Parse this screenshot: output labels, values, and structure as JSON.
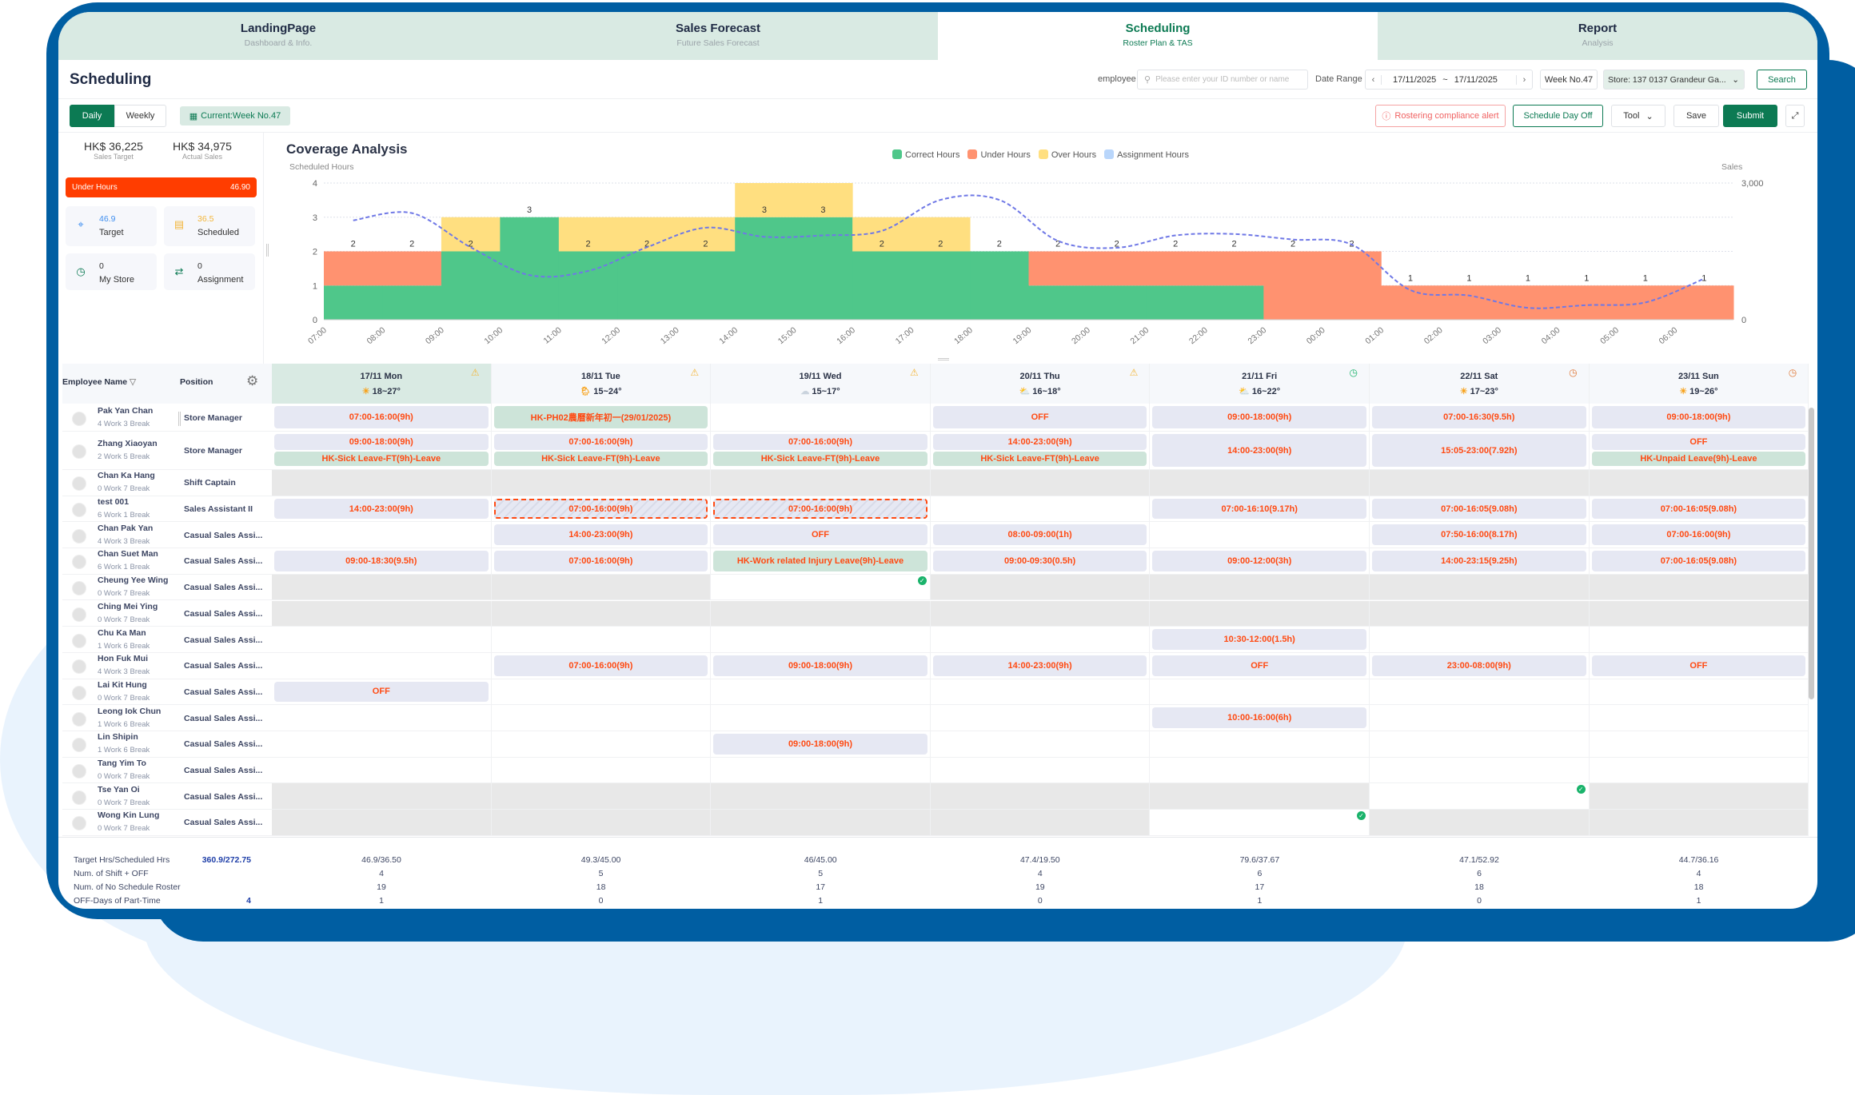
{
  "colors": {
    "brand": "#005ea2",
    "accent": "#0c7a53",
    "correct": "#4fc78a",
    "under": "#ff9270",
    "over": "#ffdf80",
    "assignment": "#b9d6fb",
    "sales_line": "#6f78e6",
    "shift_text": "#ff4a12",
    "under_hours_bar": "#ff3d00"
  },
  "tabs": [
    {
      "label": "LandingPage",
      "sub": "Dashboard & Info."
    },
    {
      "label": "Sales Forecast",
      "sub": "Future Sales Forecast"
    },
    {
      "label": "Scheduling",
      "sub": "Roster Plan & TAS",
      "active": true
    },
    {
      "label": "Report",
      "sub": "Analysis"
    }
  ],
  "page_title": "Scheduling",
  "filters": {
    "employee_label": "employee",
    "employee_placeholder": "Please enter your ID number or name",
    "date_range_label": "Date Range",
    "date_from": "17/11/2025",
    "date_sep": "~",
    "date_to": "17/11/2025",
    "week": "Week No.47",
    "store": "Store:  137 0137 Grandeur Ga...",
    "search": "Search"
  },
  "toolbar": {
    "daily": "Daily",
    "weekly": "Weekly",
    "current_week": "Current:Week No.47",
    "alert": "Rostering compliance alert",
    "schedule_day_off": "Schedule Day Off",
    "tool": "Tool",
    "save": "Save",
    "submit": "Submit"
  },
  "stats": {
    "sales_target": "HK$ 36,225",
    "sales_target_label": "Sales Target",
    "actual_sales": "HK$ 34,975",
    "actual_sales_label": "Actual Sales",
    "under_hours_label": "Under Hours",
    "under_hours": "46.90",
    "tiles": [
      {
        "value": "46.9",
        "label": "Target",
        "icon": "crosshair-icon"
      },
      {
        "value": "36.5",
        "label": "Scheduled",
        "icon": "calendar-note-icon"
      },
      {
        "value": "0",
        "label": "My Store",
        "icon": "clock-icon"
      },
      {
        "value": "0",
        "label": "Assignment",
        "icon": "shuffle-icon"
      }
    ]
  },
  "chart_data": {
    "type": "bar",
    "title": "Coverage Analysis",
    "ylabel": "Scheduled Hours",
    "y2label": "Sales",
    "ylim": [
      0,
      4
    ],
    "y2lim": [
      0,
      3000
    ],
    "yticks": [
      "0",
      "1",
      "2",
      "3",
      "4"
    ],
    "y2ticks": [
      "0",
      "3,000"
    ],
    "legend": [
      "Correct Hours",
      "Under Hours",
      "Over Hours",
      "Assignment Hours"
    ],
    "legend_position": "top",
    "categories": [
      "07:00",
      "08:00",
      "09:00",
      "10:00",
      "11:00",
      "12:00",
      "13:00",
      "14:00",
      "15:00",
      "16:00",
      "17:00",
      "18:00",
      "19:00",
      "20:00",
      "21:00",
      "22:00",
      "23:00",
      "00:00",
      "01:00",
      "02:00",
      "03:00",
      "04:00",
      "05:00",
      "06:00"
    ],
    "series": [
      {
        "name": "Correct Hours",
        "values": [
          1,
          1,
          2,
          3,
          2,
          2,
          2,
          3,
          3,
          2,
          2,
          2,
          1,
          1,
          1,
          1,
          0,
          0,
          0,
          0,
          0,
          0,
          0,
          0
        ]
      },
      {
        "name": "Under Hours",
        "values": [
          1,
          1,
          0,
          0,
          0,
          0,
          0,
          0,
          0,
          0,
          0,
          0,
          1,
          1,
          1,
          1,
          2,
          2,
          1,
          1,
          1,
          1,
          1,
          1
        ]
      },
      {
        "name": "Over Hours",
        "values": [
          0,
          0,
          1,
          0,
          1,
          1,
          1,
          1,
          1,
          1,
          1,
          0,
          0,
          0,
          0,
          0,
          0,
          0,
          0,
          0,
          0,
          0,
          0,
          0
        ]
      },
      {
        "name": "Assignment Hours",
        "values": [
          0,
          0,
          0,
          0,
          0,
          0,
          0,
          0,
          0,
          0,
          0,
          0,
          0,
          0,
          0,
          0,
          0,
          0,
          0,
          0,
          0,
          0,
          0,
          0
        ]
      }
    ],
    "bar_labels": [
      "2",
      "2",
      "2",
      "3",
      "2",
      "2",
      "2",
      "3",
      "3",
      "2",
      "2",
      "2",
      "2",
      "2",
      "2",
      "2",
      "2",
      "2",
      "1",
      "1",
      "1",
      "1",
      "1",
      "1"
    ],
    "sales": [
      2180,
      2340,
      1590,
      980,
      1070,
      1590,
      2020,
      1820,
      1850,
      1950,
      2630,
      2630,
      1730,
      1580,
      1850,
      1880,
      1760,
      1650,
      650,
      530,
      260,
      320,
      380,
      900
    ],
    "grid": true
  },
  "table": {
    "col_name": "Employee Name",
    "col_position": "Position",
    "days": [
      {
        "date": "17/11 Mon",
        "weather": "sunny",
        "temp": "18~27°",
        "alert": "warning",
        "selected": true
      },
      {
        "date": "18/11 Tue",
        "weather": "sun-rain",
        "temp": "15~24°",
        "alert": "warning"
      },
      {
        "date": "19/11 Wed",
        "weather": "cloudy",
        "temp": "15~17°",
        "alert": "warning"
      },
      {
        "date": "20/11 Thu",
        "weather": "partly-cloudy",
        "temp": "16~18°",
        "alert": "warning"
      },
      {
        "date": "21/11 Fri",
        "weather": "partly-cloudy",
        "temp": "16~22°",
        "alert": "clock-green"
      },
      {
        "date": "22/11 Sat",
        "weather": "sunny",
        "temp": "17~23°",
        "alert": "clock-orange"
      },
      {
        "date": "23/11 Sun",
        "weather": "sunny",
        "temp": "19~26°",
        "alert": "clock-orange"
      }
    ],
    "rows": [
      {
        "name": "Pak Yan Chan",
        "wb": "4 Work  3 Break",
        "position": "Store Manager",
        "cells": [
          {
            "s": [
              "07:00-16:00(9h)"
            ]
          },
          {
            "l": [
              "HK-PH02農曆新年初一(29/01/2025)"
            ]
          },
          {},
          {
            "s": [
              "OFF"
            ]
          },
          {
            "s": [
              "09:00-18:00(9h)"
            ]
          },
          {
            "s": [
              "07:00-16:30(9.5h)"
            ]
          },
          {
            "s": [
              "09:00-18:00(9h)"
            ]
          }
        ]
      },
      {
        "name": "Zhang Xiaoyan",
        "wb": "2 Work  5 Break",
        "position": "Store Manager",
        "cells": [
          {
            "s": [
              "09:00-18:00(9h)"
            ],
            "l": [
              "HK-Sick Leave-FT(9h)-Leave"
            ]
          },
          {
            "s": [
              "07:00-16:00(9h)"
            ],
            "l": [
              "HK-Sick Leave-FT(9h)-Leave"
            ]
          },
          {
            "s": [
              "07:00-16:00(9h)"
            ],
            "l": [
              "HK-Sick Leave-FT(9h)-Leave"
            ]
          },
          {
            "s": [
              "14:00-23:00(9h)"
            ],
            "l": [
              "HK-Sick Leave-FT(9h)-Leave"
            ]
          },
          {
            "s": [
              "14:00-23:00(9h)"
            ]
          },
          {
            "s": [
              "15:05-23:00(7.92h)"
            ]
          },
          {
            "s": [
              "OFF"
            ],
            "l": [
              "HK-Unpaid Leave(9h)-Leave"
            ]
          }
        ]
      },
      {
        "name": "Chan Ka Hang",
        "wb": "0 Work  7 Break",
        "position": "Shift Captain",
        "cells": [
          {
            "g": 1
          },
          {
            "g": 1
          },
          {
            "g": 1
          },
          {
            "g": 1
          },
          {
            "g": 1
          },
          {
            "g": 1
          },
          {
            "g": 1
          }
        ]
      },
      {
        "name": "test 001",
        "wb": "6 Work  1 Break",
        "position": "Sales Assistant II",
        "cells": [
          {
            "s": [
              "14:00-23:00(9h)"
            ]
          },
          {
            "d": [
              "07:00-16:00(9h)"
            ]
          },
          {
            "d": [
              "07:00-16:00(9h)"
            ]
          },
          {},
          {
            "s": [
              "07:00-16:10(9.17h)"
            ]
          },
          {
            "s": [
              "07:00-16:05(9.08h)"
            ]
          },
          {
            "s": [
              "07:00-16:05(9.08h)"
            ]
          }
        ]
      },
      {
        "name": "Chan Pak Yan",
        "wb": "4 Work  3 Break",
        "position": "Casual Sales Assi...",
        "cells": [
          {},
          {
            "s": [
              "14:00-23:00(9h)"
            ]
          },
          {
            "s": [
              "OFF"
            ]
          },
          {
            "s": [
              "08:00-09:00(1h)"
            ]
          },
          {},
          {
            "s": [
              "07:50-16:00(8.17h)"
            ]
          },
          {
            "s": [
              "07:00-16:00(9h)"
            ]
          }
        ]
      },
      {
        "name": "Chan Suet Man",
        "wb": "6 Work  1 Break",
        "position": "Casual Sales Assi...",
        "cells": [
          {
            "s": [
              "09:00-18:30(9.5h)"
            ]
          },
          {
            "s": [
              "07:00-16:00(9h)"
            ]
          },
          {
            "l": [
              "HK-Work related Injury Leave(9h)-Leave"
            ]
          },
          {
            "s": [
              "09:00-09:30(0.5h)"
            ]
          },
          {
            "s": [
              "09:00-12:00(3h)"
            ]
          },
          {
            "s": [
              "14:00-23:15(9.25h)"
            ]
          },
          {
            "s": [
              "07:00-16:05(9.08h)"
            ]
          }
        ]
      },
      {
        "name": "Cheung Yee Wing",
        "wb": "0 Work  7 Break",
        "position": "Casual Sales Assi...",
        "cells": [
          {
            "g": 1
          },
          {
            "g": 1
          },
          {
            "c": 1
          },
          {
            "g": 1
          },
          {
            "g": 1
          },
          {
            "g": 1
          },
          {
            "g": 1
          }
        ]
      },
      {
        "name": "Ching Mei Ying",
        "wb": "0 Work  7 Break",
        "position": "Casual Sales Assi...",
        "cells": [
          {
            "g": 1
          },
          {
            "g": 1
          },
          {
            "g": 1
          },
          {
            "g": 1
          },
          {
            "g": 1
          },
          {
            "g": 1
          },
          {
            "g": 1
          }
        ]
      },
      {
        "name": "Chu Ka Man",
        "wb": "1 Work  6 Break",
        "position": "Casual Sales Assi...",
        "cells": [
          {},
          {},
          {},
          {},
          {
            "s": [
              "10:30-12:00(1.5h)"
            ]
          },
          {},
          {}
        ]
      },
      {
        "name": "Hon Fuk Mui",
        "wb": "4 Work  3 Break",
        "position": "Casual Sales Assi...",
        "cells": [
          {},
          {
            "s": [
              "07:00-16:00(9h)"
            ]
          },
          {
            "s": [
              "09:00-18:00(9h)"
            ]
          },
          {
            "s": [
              "14:00-23:00(9h)"
            ]
          },
          {
            "s": [
              "OFF"
            ]
          },
          {
            "s": [
              "23:00-08:00(9h)"
            ]
          },
          {
            "s": [
              "OFF"
            ]
          }
        ]
      },
      {
        "name": "Lai Kit Hung",
        "wb": "0 Work  7 Break",
        "position": "Casual Sales Assi...",
        "cells": [
          {
            "s": [
              "OFF"
            ]
          },
          {},
          {},
          {},
          {},
          {},
          {}
        ]
      },
      {
        "name": "Leong Iok Chun",
        "wb": "1 Work  6 Break",
        "position": "Casual Sales Assi...",
        "cells": [
          {},
          {},
          {},
          {},
          {
            "s": [
              "10:00-16:00(6h)"
            ]
          },
          {},
          {}
        ]
      },
      {
        "name": "Lin Shipin",
        "wb": "1 Work  6 Break",
        "position": "Casual Sales Assi...",
        "cells": [
          {},
          {},
          {
            "s": [
              "09:00-18:00(9h)"
            ]
          },
          {},
          {},
          {},
          {}
        ]
      },
      {
        "name": "Tang Yim To",
        "wb": "0 Work  7 Break",
        "position": "Casual Sales Assi...",
        "cells": [
          {},
          {},
          {},
          {},
          {},
          {},
          {}
        ]
      },
      {
        "name": "Tse Yan Oi",
        "wb": "0 Work  7 Break",
        "position": "Casual Sales Assi...",
        "cells": [
          {
            "g": 1
          },
          {
            "g": 1
          },
          {
            "g": 1
          },
          {
            "g": 1
          },
          {
            "g": 1
          },
          {
            "c": 1
          },
          {
            "g": 1
          }
        ]
      },
      {
        "name": "Wong Kin Lung",
        "wb": "0 Work  7 Break",
        "position": "Casual Sales Assi...",
        "cells": [
          {
            "g": 1
          },
          {
            "g": 1
          },
          {
            "g": 1
          },
          {
            "g": 1
          },
          {
            "c": 1
          },
          {
            "g": 1
          },
          {
            "g": 1
          }
        ]
      }
    ]
  },
  "summary": [
    {
      "label": "Target Hrs/Scheduled Hrs",
      "total": "360.9/272.75",
      "values": [
        "46.9/36.50",
        "49.3/45.00",
        "46/45.00",
        "47.4/19.50",
        "79.6/37.67",
        "47.1/52.92",
        "44.7/36.16"
      ]
    },
    {
      "label": "Num. of Shift + OFF",
      "total": "",
      "values": [
        "4",
        "5",
        "5",
        "4",
        "6",
        "6",
        "4"
      ]
    },
    {
      "label": "Num. of No Schedule Roster",
      "total": "",
      "values": [
        "19",
        "18",
        "17",
        "19",
        "17",
        "18",
        "18"
      ]
    },
    {
      "label": "OFF-Days of Part-Time",
      "total": "4",
      "values": [
        "1",
        "0",
        "1",
        "0",
        "1",
        "0",
        "1"
      ]
    }
  ]
}
